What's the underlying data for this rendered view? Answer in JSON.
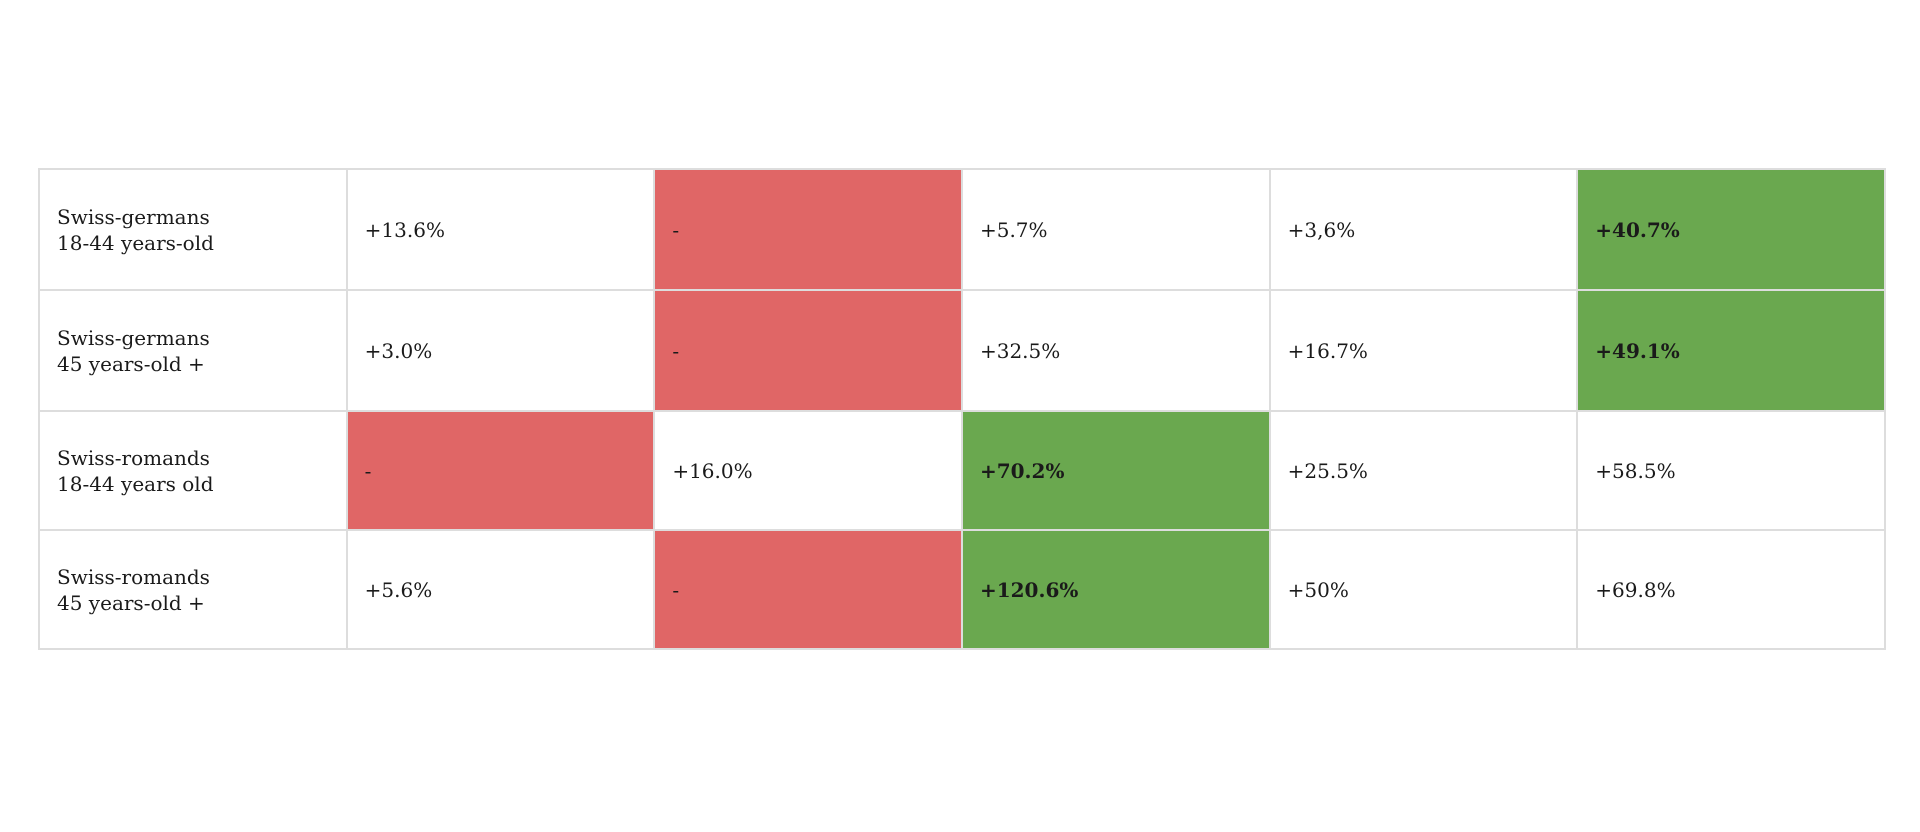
{
  "rows": [
    {
      "label_line1": "Swiss-germans",
      "label_line2": "18-44 years-old",
      "cells": [
        {
          "text": "+13.6%",
          "highlight": "none"
        },
        {
          "text": "-",
          "highlight": "red"
        },
        {
          "text": "+5.7%",
          "highlight": "none"
        },
        {
          "text": "+3,6%",
          "highlight": "none"
        },
        {
          "text": "+40.7%",
          "highlight": "green"
        }
      ]
    },
    {
      "label_line1": "Swiss-germans",
      "label_line2": "45 years-old +",
      "cells": [
        {
          "text": "+3.0%",
          "highlight": "none"
        },
        {
          "text": "-",
          "highlight": "red"
        },
        {
          "text": "+32.5%",
          "highlight": "none"
        },
        {
          "text": "+16.7%",
          "highlight": "none"
        },
        {
          "text": "+49.1%",
          "highlight": "green"
        }
      ]
    },
    {
      "label_line1": "Swiss-romands",
      "label_line2": "18-44 years old",
      "cells": [
        {
          "text": "-",
          "highlight": "red"
        },
        {
          "text": "+16.0%",
          "highlight": "none"
        },
        {
          "text": "+70.2%",
          "highlight": "green"
        },
        {
          "text": "+25.5%",
          "highlight": "none"
        },
        {
          "text": "+58.5%",
          "highlight": "none"
        }
      ]
    },
    {
      "label_line1": "Swiss-romands",
      "label_line2": "45 years-old +",
      "cells": [
        {
          "text": "+5.6%",
          "highlight": "none"
        },
        {
          "text": "-",
          "highlight": "red"
        },
        {
          "text": "+120.6%",
          "highlight": "green"
        },
        {
          "text": "+50%",
          "highlight": "none"
        },
        {
          "text": "+69.8%",
          "highlight": "none"
        }
      ]
    }
  ],
  "colors": {
    "red": "#e06666",
    "green": "#6aa84f",
    "border": "#dddddd"
  }
}
